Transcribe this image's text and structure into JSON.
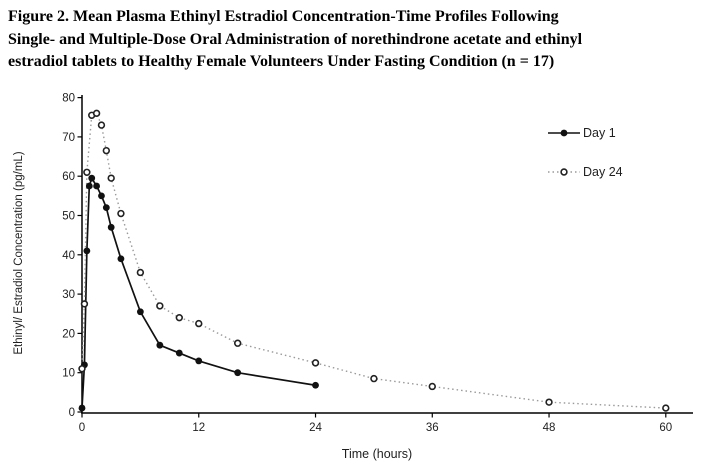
{
  "figure": {
    "title_lines": [
      "Figure 2. Mean Plasma Ethinyl Estradiol Concentration-Time Profiles Following",
      "Single- and Multiple-Dose Oral Administration of norethindrone acetate and ethinyl",
      "estradiol tablets to Healthy Female Volunteers Under Fasting Condition (n = 17)"
    ]
  },
  "chart_data": {
    "type": "line",
    "title": "",
    "xlabel": "Time (hours)",
    "ylabel": "Ethinyl/ Estradiol Concentration (pg/mL)",
    "xlim": [
      0,
      60
    ],
    "ylim": [
      0,
      80
    ],
    "x_ticks": [
      0,
      12,
      24,
      36,
      48,
      60
    ],
    "y_ticks": [
      0,
      10,
      20,
      30,
      40,
      50,
      60,
      70,
      80
    ],
    "grid": false,
    "legend_position": "upper right inside",
    "axis_color": "#000000",
    "series": [
      {
        "name": "Day 1",
        "marker": "filled-circle",
        "line_style": "solid",
        "line_color": "#111111",
        "marker_color": "#111111",
        "x": [
          0,
          0.25,
          0.5,
          0.75,
          1,
          1.5,
          2,
          2.5,
          3,
          4,
          6,
          8,
          10,
          12,
          16,
          24
        ],
        "y": [
          1,
          12,
          41,
          57.5,
          59.5,
          57.5,
          55,
          52,
          47,
          39,
          25.5,
          17,
          15,
          13,
          10,
          6.8
        ]
      },
      {
        "name": "Day 24",
        "marker": "open-circle",
        "line_style": "dotted",
        "line_color": "#9a9a9a",
        "marker_color": "#222222",
        "x": [
          0,
          0.25,
          0.5,
          1,
          1.5,
          2,
          2.5,
          3,
          4,
          6,
          8,
          10,
          12,
          16,
          24,
          30,
          36,
          48,
          60
        ],
        "y": [
          11,
          27.5,
          61,
          75.5,
          76,
          73,
          66.5,
          59.5,
          50.5,
          35.5,
          27,
          24,
          22.5,
          17.5,
          12.5,
          8.5,
          6.5,
          2.5,
          1
        ]
      }
    ]
  }
}
